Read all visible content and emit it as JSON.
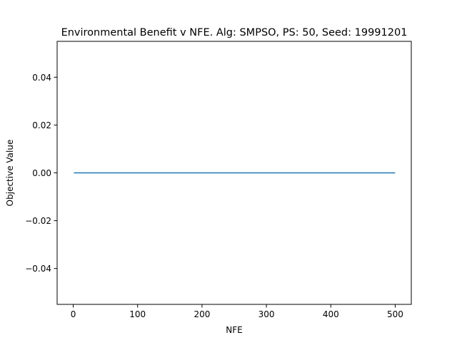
{
  "chart_data": {
    "type": "line",
    "title": "Environmental Benefit v NFE. Alg: SMPSO, PS: 50, Seed: 19991201",
    "xlabel": "NFE",
    "ylabel": "Objective Value",
    "xlim": [
      -25,
      525
    ],
    "ylim": [
      -0.055,
      0.055
    ],
    "xticks": [
      0,
      100,
      200,
      300,
      400,
      500
    ],
    "xtick_labels": [
      "0",
      "100",
      "200",
      "300",
      "400",
      "500"
    ],
    "yticks": [
      -0.04,
      -0.02,
      0.0,
      0.02,
      0.04
    ],
    "ytick_labels": [
      "−0.04",
      "−0.02",
      "0.00",
      "0.02",
      "0.04"
    ],
    "grid": false,
    "series": [
      {
        "color": "#1f77b4",
        "x": [
          1,
          500
        ],
        "y": [
          0.0,
          0.0
        ]
      }
    ]
  }
}
